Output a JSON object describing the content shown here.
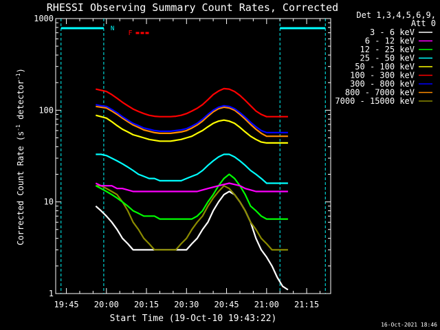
{
  "chart_data": {
    "type": "line",
    "title": "RHESSI Observing Summary Count Rates, Corrected",
    "xlabel": "Start Time (19-Oct-10 19:43:22)",
    "ylabel": "Corrected Count Rate (s⁻¹ detector⁻¹)",
    "ylabel_parts": {
      "main": "Corrected Count Rate (s",
      "exp1": "-1",
      "mid": " detector",
      "exp2": "-1",
      "end": ")"
    },
    "yscale": "log",
    "xlim": [
      "19:41",
      "21:24"
    ],
    "ylim": [
      1,
      1000
    ],
    "x_ticks": [
      "19:45",
      "20:00",
      "20:15",
      "20:30",
      "20:45",
      "21:00",
      "21:15"
    ],
    "y_ticks": [
      "1",
      "10",
      "100",
      "1000"
    ],
    "legend_title": "Det 1,3,4,5,6,9,",
    "legend_att": "Att 0",
    "legend_position": "right",
    "timestamp": "16-Oct-2021 18:46",
    "annotations": {
      "night_label": "N",
      "night_intervals": [
        [
          "19:43",
          "19:59"
        ],
        [
          "21:05",
          "21:22"
        ]
      ],
      "flare_label": "F",
      "flare_interval": [
        "20:11",
        "20:16"
      ],
      "dashed_lines": [
        "19:43",
        "19:59",
        "21:05",
        "21:22"
      ]
    },
    "x": [
      "19:56",
      "19:58",
      "20:00",
      "20:02",
      "20:04",
      "20:06",
      "20:08",
      "20:10",
      "20:12",
      "20:14",
      "20:16",
      "20:18",
      "20:20",
      "20:22",
      "20:24",
      "20:26",
      "20:28",
      "20:30",
      "20:32",
      "20:34",
      "20:36",
      "20:38",
      "20:40",
      "20:42",
      "20:44",
      "20:46",
      "20:48",
      "20:50",
      "20:52",
      "20:54",
      "20:56",
      "20:58",
      "21:00",
      "21:02",
      "21:04",
      "21:06",
      "21:08"
    ],
    "series": [
      {
        "name": "3 - 6 keV",
        "color": "#ffffff",
        "values": [
          9,
          8,
          7,
          6,
          5,
          4,
          3.5,
          3,
          3,
          3,
          3,
          3,
          3,
          3,
          3,
          3,
          3,
          3,
          3.5,
          4,
          5,
          6,
          8,
          10,
          12,
          13,
          12,
          10,
          8,
          6,
          4,
          3,
          2.5,
          2,
          1.5,
          1.2,
          1.1
        ]
      },
      {
        "name": "6 - 12 keV",
        "color": "#ff00ff",
        "values": [
          16,
          15,
          15,
          15,
          14,
          14,
          13.5,
          13,
          13,
          13,
          13,
          13,
          13,
          13,
          13,
          13,
          13,
          13,
          13,
          13,
          13.5,
          14,
          14.5,
          15,
          15.5,
          16,
          15.5,
          15,
          14,
          13.5,
          13,
          13,
          13,
          13,
          13,
          13,
          13
        ]
      },
      {
        "name": "12 - 25 keV",
        "color": "#00ff00",
        "values": [
          15,
          14,
          13,
          12,
          11,
          10,
          9,
          8,
          7.5,
          7,
          7,
          7,
          6.5,
          6.5,
          6.5,
          6.5,
          6.5,
          6.5,
          6.5,
          7,
          8,
          10,
          12,
          15,
          18,
          20,
          18,
          15,
          12,
          9,
          8,
          7,
          6.5,
          6.5,
          6.5,
          6.5,
          6.5
        ]
      },
      {
        "name": "25 - 50 keV",
        "color": "#00ffff",
        "values": [
          33,
          33,
          32,
          30,
          28,
          26,
          24,
          22,
          20,
          19,
          18,
          18,
          17,
          17,
          17,
          17,
          17,
          18,
          19,
          20,
          22,
          25,
          28,
          31,
          33,
          33,
          31,
          28,
          25,
          22,
          20,
          18,
          16,
          16,
          16,
          16,
          16
        ]
      },
      {
        "name": "50 - 100 keV",
        "color": "#ffff00",
        "values": [
          88,
          85,
          82,
          75,
          68,
          62,
          58,
          54,
          52,
          50,
          48,
          47,
          46,
          46,
          46,
          47,
          48,
          50,
          52,
          56,
          60,
          66,
          72,
          76,
          78,
          76,
          72,
          65,
          58,
          52,
          48,
          45,
          44,
          44,
          44,
          44,
          44
        ]
      },
      {
        "name": "100 - 300 keV",
        "color": "#ff0000",
        "values": [
          170,
          165,
          160,
          148,
          135,
          122,
          112,
          103,
          97,
          92,
          88,
          86,
          85,
          85,
          85,
          86,
          88,
          92,
          98,
          105,
          115,
          130,
          148,
          162,
          172,
          170,
          160,
          145,
          128,
          112,
          98,
          90,
          85,
          85,
          85,
          85,
          85
        ]
      },
      {
        "name": "300 - 800 keV",
        "color": "#0000ff",
        "values": [
          115,
          112,
          110,
          102,
          94,
          85,
          78,
          72,
          68,
          64,
          62,
          60,
          59,
          59,
          59,
          60,
          61,
          63,
          67,
          72,
          80,
          90,
          100,
          108,
          112,
          110,
          104,
          94,
          84,
          74,
          66,
          60,
          57,
          57,
          57,
          57,
          57
        ]
      },
      {
        "name": "800 - 7000 keV",
        "color": "#ff8c00",
        "values": [
          110,
          108,
          106,
          98,
          90,
          82,
          75,
          69,
          65,
          61,
          59,
          57,
          56,
          56,
          56,
          57,
          58,
          60,
          64,
          69,
          76,
          86,
          96,
          104,
          108,
          106,
          100,
          90,
          80,
          70,
          62,
          56,
          52,
          52,
          52,
          52,
          52
        ]
      },
      {
        "name": "7000 - 15000 keV",
        "color": "#8b8b00",
        "values": [
          15,
          15,
          14,
          13,
          12,
          10,
          8,
          6,
          5,
          4,
          3.5,
          3,
          3,
          3,
          3,
          3,
          3.5,
          4,
          5,
          6,
          7,
          9,
          11,
          13,
          15,
          14,
          12,
          10,
          8,
          6,
          5,
          4,
          3.5,
          3,
          3,
          3,
          3
        ]
      }
    ]
  }
}
